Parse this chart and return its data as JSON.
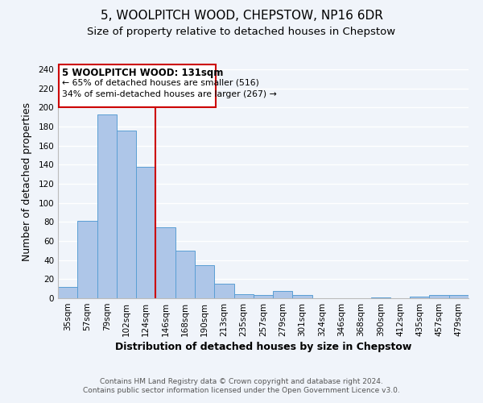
{
  "title": "5, WOOLPITCH WOOD, CHEPSTOW, NP16 6DR",
  "subtitle": "Size of property relative to detached houses in Chepstow",
  "xlabel": "Distribution of detached houses by size in Chepstow",
  "ylabel": "Number of detached properties",
  "bar_labels": [
    "35sqm",
    "57sqm",
    "79sqm",
    "102sqm",
    "124sqm",
    "146sqm",
    "168sqm",
    "190sqm",
    "213sqm",
    "235sqm",
    "257sqm",
    "279sqm",
    "301sqm",
    "324sqm",
    "346sqm",
    "368sqm",
    "390sqm",
    "412sqm",
    "435sqm",
    "457sqm",
    "479sqm"
  ],
  "bar_values": [
    12,
    81,
    193,
    176,
    138,
    74,
    50,
    35,
    15,
    4,
    3,
    8,
    3,
    0,
    0,
    0,
    1,
    0,
    2,
    3,
    3
  ],
  "bar_color": "#aec6e8",
  "bar_edge_color": "#5a9fd4",
  "ylim": [
    0,
    245
  ],
  "yticks": [
    0,
    20,
    40,
    60,
    80,
    100,
    120,
    140,
    160,
    180,
    200,
    220,
    240
  ],
  "vline_x": 4.5,
  "vline_color": "#cc0000",
  "annotation_title": "5 WOOLPITCH WOOD: 131sqm",
  "annotation_line1": "← 65% of detached houses are smaller (516)",
  "annotation_line2": "34% of semi-detached houses are larger (267) →",
  "annotation_box_color": "#ffffff",
  "annotation_box_edge": "#cc0000",
  "footer1": "Contains HM Land Registry data © Crown copyright and database right 2024.",
  "footer2": "Contains public sector information licensed under the Open Government Licence v3.0.",
  "background_color": "#f0f4fa",
  "grid_color": "#ffffff",
  "title_fontsize": 11,
  "subtitle_fontsize": 9.5,
  "axis_label_fontsize": 9,
  "tick_fontsize": 7.5,
  "footer_fontsize": 6.5,
  "ann_title_fontsize": 8.5,
  "ann_text_fontsize": 7.8
}
